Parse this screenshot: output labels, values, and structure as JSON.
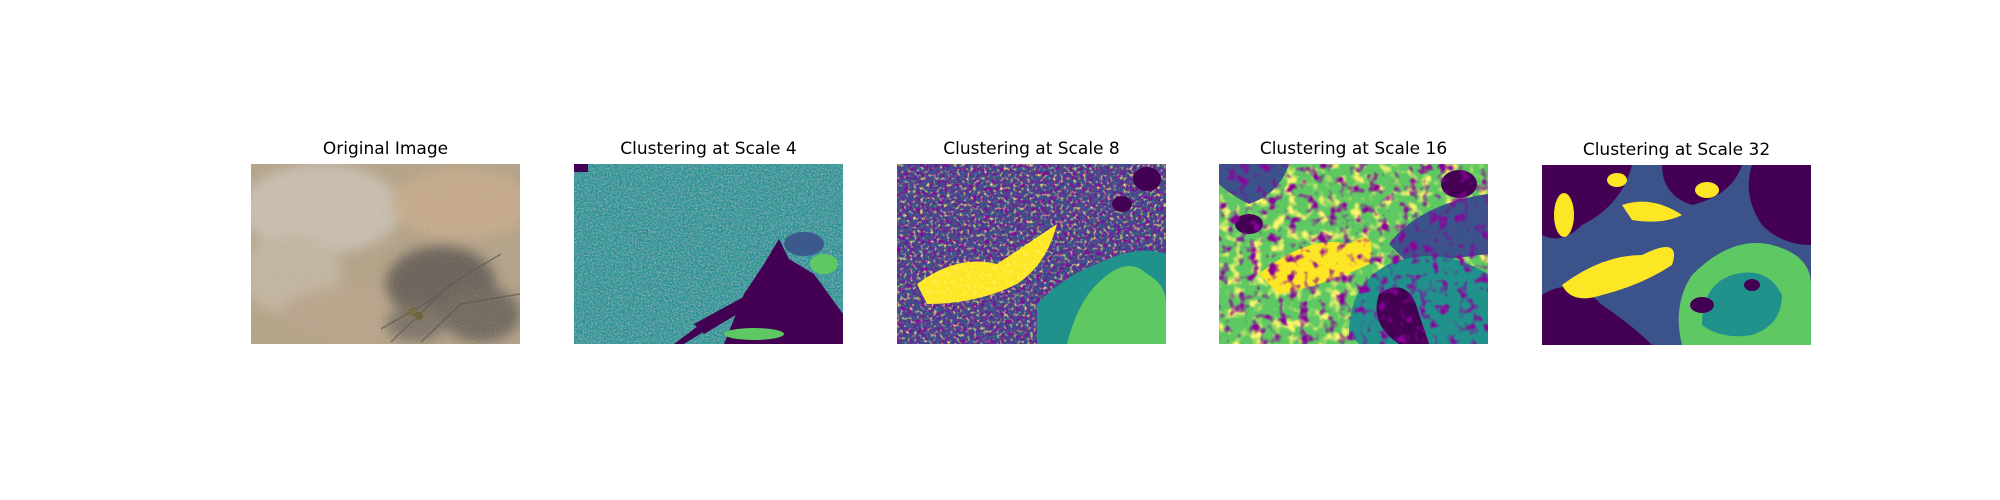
{
  "panels": [
    {
      "title": "Original Image"
    },
    {
      "title": "Clustering at Scale 4"
    },
    {
      "title": "Clustering at Scale 8"
    },
    {
      "title": "Clustering at Scale 16"
    },
    {
      "title": "Clustering at Scale 32"
    }
  ],
  "colors": {
    "cluster_0": "#440154",
    "cluster_1": "#3b528b",
    "cluster_2": "#21918c",
    "cluster_3": "#5ec962",
    "cluster_4": "#fde725",
    "ground": "#b5a080",
    "ground_light": "#cdb99a",
    "shadow": "#4e4a44"
  }
}
